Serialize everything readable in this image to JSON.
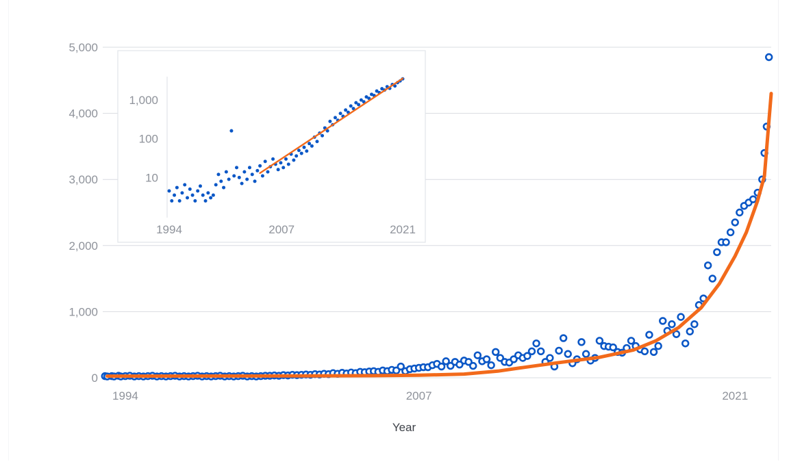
{
  "colors": {
    "points": "#0b57c6",
    "trend": "#f26a1b",
    "grid": "#d9dce1",
    "tick_text": "#8f939b",
    "axis_title_text": "#3e4249",
    "inset_border": "#e1e4e8"
  },
  "chart_data": [
    {
      "type": "scatter",
      "title": "",
      "xlabel": "Year",
      "ylabel": "",
      "x_tick_labels": [
        "1994",
        "2007",
        "2021"
      ],
      "x_ticks": [
        1994,
        2007,
        2021
      ],
      "xlim": [
        1993,
        2022.6
      ],
      "y_tick_labels": [
        "0",
        "1,000",
        "2,000",
        "3,000",
        "4,000",
        "5,000"
      ],
      "y_ticks": [
        0,
        1000,
        2000,
        3000,
        4000,
        5000
      ],
      "ylim": [
        0,
        5000
      ],
      "grid": true,
      "legend": "none",
      "series": [
        {
          "kind": "points",
          "points": [
            [
              1993.1,
              25
            ],
            [
              1993.2,
              20
            ],
            [
              1993.4,
              25
            ],
            [
              1993.5,
              20
            ],
            [
              1993.7,
              30
            ],
            [
              1993.8,
              20
            ],
            [
              1994.0,
              25
            ],
            [
              1994.2,
              30
            ],
            [
              1994.4,
              20
            ],
            [
              1994.6,
              25
            ],
            [
              1994.8,
              20
            ],
            [
              1995.0,
              25
            ],
            [
              1995.2,
              30
            ],
            [
              1995.4,
              20
            ],
            [
              1995.6,
              25
            ],
            [
              1995.8,
              20
            ],
            [
              1996.0,
              25
            ],
            [
              1996.2,
              30
            ],
            [
              1996.4,
              20
            ],
            [
              1996.6,
              25
            ],
            [
              1996.8,
              20
            ],
            [
              1997.0,
              25
            ],
            [
              1997.2,
              30
            ],
            [
              1997.4,
              20
            ],
            [
              1997.6,
              25
            ],
            [
              1997.8,
              20
            ],
            [
              1998.0,
              25
            ],
            [
              1998.2,
              30
            ],
            [
              1998.4,
              20
            ],
            [
              1998.6,
              25
            ],
            [
              1998.8,
              20
            ],
            [
              1999.0,
              25
            ],
            [
              1999.2,
              30
            ],
            [
              1999.4,
              20
            ],
            [
              1999.6,
              25
            ],
            [
              1999.8,
              20
            ],
            [
              2000.0,
              25
            ],
            [
              2000.2,
              30
            ],
            [
              2000.4,
              30
            ],
            [
              2000.6,
              35
            ],
            [
              2000.8,
              30
            ],
            [
              2001.0,
              40
            ],
            [
              2001.2,
              35
            ],
            [
              2001.4,
              45
            ],
            [
              2001.6,
              40
            ],
            [
              2001.8,
              45
            ],
            [
              2002.0,
              50
            ],
            [
              2002.2,
              45
            ],
            [
              2002.4,
              55
            ],
            [
              2002.6,
              50
            ],
            [
              2002.8,
              60
            ],
            [
              2003.0,
              55
            ],
            [
              2003.2,
              70
            ],
            [
              2003.4,
              60
            ],
            [
              2003.6,
              75
            ],
            [
              2003.8,
              65
            ],
            [
              2004.0,
              80
            ],
            [
              2004.2,
              70
            ],
            [
              2004.4,
              90
            ],
            [
              2004.6,
              85
            ],
            [
              2004.8,
              95
            ],
            [
              2005.0,
              100
            ],
            [
              2005.2,
              90
            ],
            [
              2005.4,
              110
            ],
            [
              2005.6,
              100
            ],
            [
              2005.8,
              120
            ],
            [
              2006.0,
              110
            ],
            [
              2006.2,
              170
            ],
            [
              2006.4,
              100
            ],
            [
              2006.6,
              130
            ],
            [
              2006.8,
              140
            ],
            [
              2007.0,
              150
            ],
            [
              2007.2,
              160
            ],
            [
              2007.4,
              160
            ],
            [
              2007.6,
              190
            ],
            [
              2007.8,
              210
            ],
            [
              2008.0,
              170
            ],
            [
              2008.2,
              250
            ],
            [
              2008.4,
              180
            ],
            [
              2008.6,
              240
            ],
            [
              2008.8,
              200
            ],
            [
              2009.0,
              260
            ],
            [
              2009.2,
              240
            ],
            [
              2009.4,
              180
            ],
            [
              2009.6,
              340
            ],
            [
              2009.8,
              250
            ],
            [
              2010.0,
              280
            ],
            [
              2010.2,
              190
            ],
            [
              2010.4,
              390
            ],
            [
              2010.6,
              300
            ],
            [
              2010.8,
              240
            ],
            [
              2011.0,
              230
            ],
            [
              2011.2,
              280
            ],
            [
              2011.4,
              340
            ],
            [
              2011.6,
              300
            ],
            [
              2011.8,
              330
            ],
            [
              2012.0,
              400
            ],
            [
              2012.2,
              520
            ],
            [
              2012.4,
              400
            ],
            [
              2012.6,
              240
            ],
            [
              2012.8,
              300
            ],
            [
              2013.0,
              170
            ],
            [
              2013.2,
              410
            ],
            [
              2013.4,
              600
            ],
            [
              2013.6,
              360
            ],
            [
              2013.8,
              220
            ],
            [
              2014.0,
              280
            ],
            [
              2014.2,
              540
            ],
            [
              2014.4,
              360
            ],
            [
              2014.6,
              260
            ],
            [
              2014.8,
              300
            ],
            [
              2015.0,
              560
            ],
            [
              2015.2,
              480
            ],
            [
              2015.4,
              470
            ],
            [
              2015.6,
              460
            ],
            [
              2015.8,
              390
            ],
            [
              2016.0,
              380
            ],
            [
              2016.2,
              450
            ],
            [
              2016.4,
              560
            ],
            [
              2016.6,
              480
            ],
            [
              2016.8,
              430
            ],
            [
              2017.0,
              400
            ],
            [
              2017.2,
              650
            ],
            [
              2017.4,
              390
            ],
            [
              2017.6,
              480
            ],
            [
              2017.8,
              860
            ],
            [
              2018.0,
              710
            ],
            [
              2018.2,
              810
            ],
            [
              2018.4,
              660
            ],
            [
              2018.6,
              920
            ],
            [
              2018.8,
              520
            ],
            [
              2019.0,
              700
            ],
            [
              2019.2,
              810
            ],
            [
              2019.4,
              1100
            ],
            [
              2019.6,
              1200
            ],
            [
              2019.8,
              1700
            ],
            [
              2020.0,
              1500
            ],
            [
              2020.2,
              1900
            ],
            [
              2020.4,
              2050
            ],
            [
              2020.6,
              2050
            ],
            [
              2020.8,
              2200
            ],
            [
              2021.0,
              2350
            ],
            [
              2021.2,
              2500
            ],
            [
              2021.4,
              2600
            ],
            [
              2021.6,
              2650
            ],
            [
              2021.8,
              2700
            ],
            [
              2022.0,
              2800
            ],
            [
              2022.2,
              3000
            ],
            [
              2022.3,
              3400
            ],
            [
              2022.4,
              3800
            ],
            [
              2022.5,
              4850
            ]
          ]
        },
        {
          "kind": "trend_line",
          "points": [
            [
              1993.2,
              25
            ],
            [
              1996,
              26
            ],
            [
              1999,
              27
            ],
            [
              2002,
              29
            ],
            [
              2005,
              32
            ],
            [
              2007,
              38
            ],
            [
              2009,
              56
            ],
            [
              2010.5,
              100
            ],
            [
              2011.5,
              150
            ],
            [
              2013,
              220
            ],
            [
              2015,
              310
            ],
            [
              2016.5,
              420
            ],
            [
              2017.5,
              560
            ],
            [
              2018.5,
              760
            ],
            [
              2019.5,
              1060
            ],
            [
              2020.3,
              1420
            ],
            [
              2021,
              1840
            ],
            [
              2021.5,
              2200
            ],
            [
              2022,
              2680
            ],
            [
              2022.3,
              3050
            ],
            [
              2022.6,
              4300
            ]
          ]
        }
      ]
    },
    {
      "type": "scatter",
      "title": "",
      "xlabel": "",
      "ylabel": "",
      "x_tick_labels": [
        "1994",
        "2007",
        "2021"
      ],
      "x_ticks": [
        1994,
        2007,
        2021
      ],
      "xlim": [
        1994,
        2021
      ],
      "y_tick_labels": [
        "10",
        "100",
        "1,000"
      ],
      "y_ticks": [
        10,
        100,
        1000
      ],
      "ylim": [
        1,
        4000
      ],
      "yscale": "log",
      "grid": false,
      "legend": "none",
      "series": [
        {
          "kind": "points",
          "points": [
            [
              1994.0,
              4.5
            ],
            [
              1994.3,
              2.5
            ],
            [
              1994.6,
              3.5
            ],
            [
              1994.9,
              5.5
            ],
            [
              1995.2,
              2.5
            ],
            [
              1995.5,
              4.0
            ],
            [
              1995.8,
              6.5
            ],
            [
              1996.1,
              3.0
            ],
            [
              1996.4,
              5.0
            ],
            [
              1996.7,
              3.5
            ],
            [
              1997.0,
              2.5
            ],
            [
              1997.3,
              4.5
            ],
            [
              1997.6,
              6.0
            ],
            [
              1997.9,
              3.5
            ],
            [
              1998.2,
              2.5
            ],
            [
              1998.5,
              4.0
            ],
            [
              1998.8,
              3.0
            ],
            [
              1999.1,
              3.5
            ],
            [
              1999.4,
              6.5
            ],
            [
              1999.7,
              12
            ],
            [
              2000.0,
              8
            ],
            [
              2000.3,
              5.5
            ],
            [
              2000.6,
              14
            ],
            [
              2000.9,
              9
            ],
            [
              2001.2,
              160
            ],
            [
              2001.5,
              11
            ],
            [
              2001.8,
              18
            ],
            [
              2002.1,
              10
            ],
            [
              2002.4,
              7
            ],
            [
              2002.7,
              14
            ],
            [
              2003.0,
              9
            ],
            [
              2003.3,
              18
            ],
            [
              2003.6,
              12
            ],
            [
              2003.9,
              8
            ],
            [
              2004.2,
              15
            ],
            [
              2004.5,
              20
            ],
            [
              2004.8,
              11
            ],
            [
              2005.1,
              26
            ],
            [
              2005.4,
              14
            ],
            [
              2005.7,
              19
            ],
            [
              2006.0,
              30
            ],
            [
              2006.3,
              22
            ],
            [
              2006.6,
              16
            ],
            [
              2006.9,
              24
            ],
            [
              2007.2,
              18
            ],
            [
              2007.5,
              30
            ],
            [
              2007.8,
              22
            ],
            [
              2008.1,
              40
            ],
            [
              2008.4,
              28
            ],
            [
              2008.7,
              36
            ],
            [
              2009.0,
              50
            ],
            [
              2009.3,
              42
            ],
            [
              2009.6,
              60
            ],
            [
              2009.9,
              48
            ],
            [
              2010.2,
              75
            ],
            [
              2010.5,
              65
            ],
            [
              2010.8,
              110
            ],
            [
              2011.1,
              85
            ],
            [
              2011.4,
              140
            ],
            [
              2011.7,
              120
            ],
            [
              2012.0,
              190
            ],
            [
              2012.3,
              160
            ],
            [
              2012.6,
              280
            ],
            [
              2012.9,
              230
            ],
            [
              2013.2,
              350
            ],
            [
              2013.5,
              300
            ],
            [
              2013.8,
              450
            ],
            [
              2014.1,
              380
            ],
            [
              2014.4,
              550
            ],
            [
              2014.7,
              480
            ],
            [
              2015.0,
              700
            ],
            [
              2015.3,
              600
            ],
            [
              2015.6,
              850
            ],
            [
              2015.9,
              760
            ],
            [
              2016.2,
              1000
            ],
            [
              2016.5,
              900
            ],
            [
              2016.8,
              1200
            ],
            [
              2017.1,
              1100
            ],
            [
              2017.4,
              1400
            ],
            [
              2017.7,
              1300
            ],
            [
              2018.0,
              1700
            ],
            [
              2018.3,
              1550
            ],
            [
              2018.6,
              1950
            ],
            [
              2018.9,
              1800
            ],
            [
              2019.2,
              2200
            ],
            [
              2019.5,
              2000
            ],
            [
              2019.8,
              2500
            ],
            [
              2020.1,
              2300
            ],
            [
              2020.4,
              2800
            ],
            [
              2020.7,
              3100
            ],
            [
              2021.0,
              3500
            ]
          ]
        },
        {
          "kind": "trend_line",
          "points": [
            [
              2004.5,
              13
            ],
            [
              2021,
              3600
            ]
          ]
        }
      ]
    }
  ]
}
